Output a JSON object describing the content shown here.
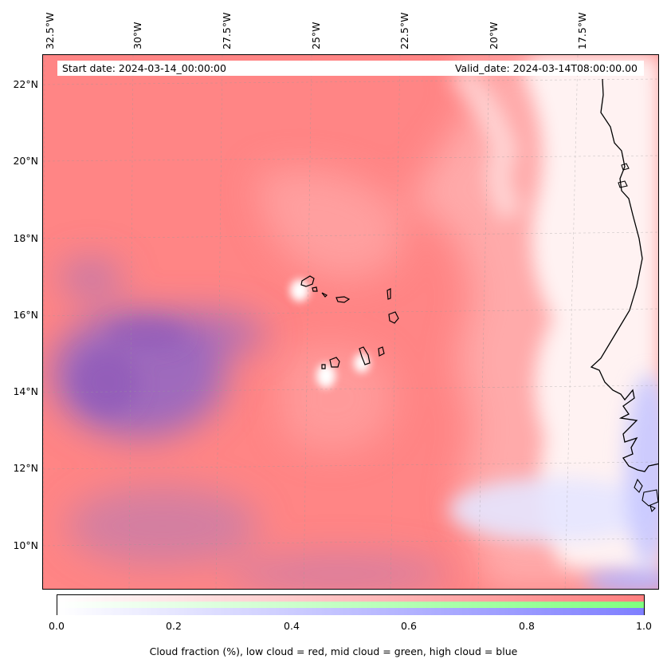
{
  "title_bar": {
    "start_date": "Start date: 2024-03-14_00:00:00",
    "valid_date": "Valid_date: 2024-03-14T08:00:00.00"
  },
  "lon_ticks": [
    "32.5°W",
    "30°W",
    "27.5°W",
    "25°W",
    "22.5°W",
    "20°W",
    "17.5°W"
  ],
  "lat_ticks": [
    "22°N",
    "20°N",
    "18°N",
    "16°N",
    "14°N",
    "12°N",
    "10°N"
  ],
  "colorbar": {
    "ticks": [
      "0.0",
      "0.2",
      "0.4",
      "0.6",
      "0.8",
      "1.0"
    ],
    "label": "Cloud fraction (%), low cloud = red, mid cloud = green, high cloud = blue",
    "colors": {
      "low": "#ff7f7f",
      "mid": "#7fff7f",
      "high": "#7f7fff"
    }
  },
  "map": {
    "land_color": "#ffffff",
    "low_cloud_color": "#ff8585",
    "high_cloud_color": "#9a68c0",
    "coastline_color": "#000000"
  }
}
